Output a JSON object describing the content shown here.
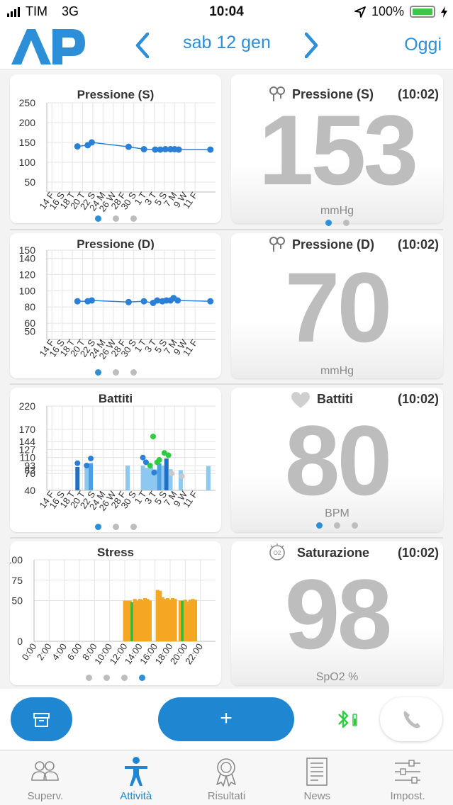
{
  "status": {
    "carrier": "TIM",
    "network": "3G",
    "time": "10:04",
    "battery": "100%"
  },
  "header": {
    "logo_text": "AP",
    "date": "sab 12 gen",
    "today_label": "Oggi"
  },
  "colors": {
    "accent": "#2c8fd8",
    "point": "#2a7fd6",
    "bar_light": "#8cc8ef",
    "bar_mid": "#4aa0e0",
    "bar_dark": "#1f6fc4",
    "green": "#2ecc40",
    "orange": "#f5a623",
    "stress_green": "#2bbd3a"
  },
  "sections": [
    {
      "chart_title": "Pressione (S)",
      "value_label": "Pressione (S)",
      "value_time": "(10:02)",
      "value": "153",
      "unit": "mmHg",
      "value_icon": "blood-pressure-icon",
      "chart_dots": 3,
      "chart_dot_active": 0,
      "value_dots": 2,
      "value_dot_active": 0
    },
    {
      "chart_title": "Pressione (D)",
      "value_label": "Pressione (D)",
      "value_time": "(10:02)",
      "value": "70",
      "unit": "mmHg",
      "value_icon": "blood-pressure-icon",
      "chart_dots": 3,
      "chart_dot_active": 0,
      "value_dots": 0,
      "value_dot_active": 0
    },
    {
      "chart_title": "Battiti",
      "value_label": "Battiti",
      "value_time": "(10:02)",
      "value": "80",
      "unit": "BPM",
      "value_icon": "heart-icon",
      "chart_dots": 3,
      "chart_dot_active": 0,
      "value_dots": 3,
      "value_dot_active": 0
    },
    {
      "chart_title": "Stress",
      "value_label": "Saturazione",
      "value_time": "(10:02)",
      "value": "98",
      "unit": "SpO2 %",
      "value_icon": "oxygen-icon",
      "chart_dots": 4,
      "chart_dot_active": 3,
      "value_dots": 0,
      "value_dot_active": 0
    }
  ],
  "chart_data": [
    {
      "type": "line",
      "title": "Pressione (S)",
      "categories": [
        "14 F",
        "16 S",
        "18 T",
        "20 T",
        "22 S",
        "24 M",
        "26 W",
        "28 F",
        "30 S",
        "1 T",
        "3 T",
        "5 S",
        "7 M",
        "9 W",
        "11 F"
      ],
      "ylim": [
        25,
        250
      ],
      "yticks": [
        50,
        100,
        150,
        200,
        250
      ],
      "ytick_labels": [
        "50",
        "100",
        "150",
        "200",
        "250"
      ],
      "series": [
        {
          "x": [
            3,
            4,
            4.4,
            8,
            9.5,
            10.6,
            11.1,
            11.6,
            12.1,
            12.5,
            12.9,
            16
          ],
          "y": [
            140,
            143,
            150,
            139,
            133,
            132,
            132,
            133,
            133,
            133,
            132,
            132
          ]
        }
      ],
      "grid": true
    },
    {
      "type": "line",
      "title": "Pressione (D)",
      "categories": [
        "14 F",
        "16 S",
        "18 T",
        "20 T",
        "22 S",
        "24 M",
        "26 W",
        "28 F",
        "30 S",
        "1 T",
        "3 T",
        "5 S",
        "7 M",
        "9 W",
        "11 F"
      ],
      "ylim": [
        40,
        150
      ],
      "yticks": [
        50,
        60,
        80,
        100,
        120,
        140,
        150
      ],
      "ytick_labels": [
        "50",
        "60",
        "80",
        "100",
        "120",
        "140",
        "150"
      ],
      "series": [
        {
          "x": [
            3,
            4,
            4.4,
            8,
            9.5,
            10.4,
            10.8,
            11.3,
            11.7,
            12.1,
            12.4,
            12.8,
            16
          ],
          "y": [
            87,
            87,
            88,
            86,
            87,
            85,
            88,
            87,
            88,
            88,
            91,
            88,
            87
          ]
        }
      ],
      "grid": true
    },
    {
      "type": "bar",
      "title": "Battiti",
      "categories": [
        "14 F",
        "16 S",
        "18 T",
        "20 T",
        "22 S",
        "24 M",
        "26 W",
        "28 F",
        "30 S",
        "1 T",
        "3 T",
        "5 S",
        "7 M",
        "9 W",
        "11 F"
      ],
      "ylim": [
        40,
        220
      ],
      "yticks": [
        40,
        76,
        83,
        93,
        110,
        127,
        144,
        170,
        220
      ],
      "ytick_labels": [
        "40",
        "76",
        "83",
        "93",
        "110",
        "127",
        "144",
        "170",
        "220"
      ],
      "bars": [
        {
          "x": 3,
          "low": 40,
          "high": 90,
          "shade": "dark"
        },
        {
          "x": 3.9,
          "low": 40,
          "high": 95,
          "shade": "light"
        },
        {
          "x": 4.3,
          "low": 40,
          "high": 98,
          "shade": "mid"
        },
        {
          "x": 7.9,
          "low": 40,
          "high": 93,
          "shade": "light"
        },
        {
          "x": 9.4,
          "low": 40,
          "high": 93,
          "shade": "light"
        },
        {
          "x": 9.8,
          "low": 40,
          "high": 88,
          "shade": "light"
        },
        {
          "x": 10.2,
          "low": 40,
          "high": 90,
          "shade": "light"
        },
        {
          "x": 10.6,
          "low": 40,
          "high": 85,
          "shade": "light"
        },
        {
          "x": 11.0,
          "low": 40,
          "high": 98,
          "shade": "mid"
        },
        {
          "x": 11.4,
          "low": 40,
          "high": 93,
          "shade": "light"
        },
        {
          "x": 11.7,
          "low": 40,
          "high": 108,
          "shade": "dark"
        },
        {
          "x": 12.1,
          "low": 40,
          "high": 85,
          "shade": "light"
        },
        {
          "x": 13.1,
          "low": 40,
          "high": 83,
          "shade": "light"
        },
        {
          "x": 15.8,
          "low": 40,
          "high": 92,
          "shade": "light"
        }
      ],
      "points": [
        {
          "x": 3,
          "y": 98,
          "color": "blue"
        },
        {
          "x": 3.9,
          "y": 93,
          "color": "blue"
        },
        {
          "x": 4.3,
          "y": 108,
          "color": "blue"
        },
        {
          "x": 9.4,
          "y": 110,
          "color": "blue"
        },
        {
          "x": 9.7,
          "y": 100,
          "color": "blue"
        },
        {
          "x": 10.1,
          "y": 93,
          "color": "green"
        },
        {
          "x": 10.4,
          "y": 155,
          "color": "green"
        },
        {
          "x": 10.5,
          "y": 78,
          "color": "blue"
        },
        {
          "x": 10.8,
          "y": 100,
          "color": "green"
        },
        {
          "x": 11.0,
          "y": 105,
          "color": "green"
        },
        {
          "x": 11.5,
          "y": 120,
          "color": "green"
        },
        {
          "x": 11.9,
          "y": 115,
          "color": "green"
        },
        {
          "x": 12.2,
          "y": 76,
          "color": "grey"
        },
        {
          "x": 13.2,
          "y": 70,
          "color": "grey"
        }
      ],
      "grid": true
    },
    {
      "type": "bar",
      "title": "Stress",
      "categories": [
        "0:00",
        "2:00",
        "4:00",
        "6:00",
        "8:00",
        "10:00",
        "12:00",
        "14:00",
        "16:00",
        "18:00",
        "20:00",
        "22:00"
      ],
      "ylim": [
        0,
        100
      ],
      "yticks": [
        0,
        50,
        75,
        100
      ],
      "ytick_labels": [
        "0",
        "50",
        "75",
        "100"
      ],
      "bars": [
        {
          "x": 12.0,
          "v": 50,
          "c": "orange"
        },
        {
          "x": 12.33,
          "v": 50,
          "c": "orange"
        },
        {
          "x": 12.67,
          "v": 50,
          "c": "orange"
        },
        {
          "x": 13.0,
          "v": 48,
          "c": "green"
        },
        {
          "x": 13.33,
          "v": 52,
          "c": "orange"
        },
        {
          "x": 13.67,
          "v": 50,
          "c": "orange"
        },
        {
          "x": 14.0,
          "v": 52,
          "c": "orange"
        },
        {
          "x": 14.33,
          "v": 51,
          "c": "orange"
        },
        {
          "x": 14.67,
          "v": 53,
          "c": "orange"
        },
        {
          "x": 15.0,
          "v": 52,
          "c": "orange"
        },
        {
          "x": 15.33,
          "v": 50,
          "c": "orange"
        },
        {
          "x": 16.33,
          "v": 63,
          "c": "orange"
        },
        {
          "x": 16.67,
          "v": 62,
          "c": "orange"
        },
        {
          "x": 17.0,
          "v": 54,
          "c": "orange"
        },
        {
          "x": 17.33,
          "v": 52,
          "c": "orange"
        },
        {
          "x": 17.67,
          "v": 53,
          "c": "orange"
        },
        {
          "x": 18.0,
          "v": 51,
          "c": "orange"
        },
        {
          "x": 18.33,
          "v": 53,
          "c": "orange"
        },
        {
          "x": 18.67,
          "v": 52,
          "c": "orange"
        },
        {
          "x": 19.33,
          "v": 50,
          "c": "orange"
        },
        {
          "x": 19.67,
          "v": 50,
          "c": "green"
        },
        {
          "x": 20.0,
          "v": 51,
          "c": "orange"
        },
        {
          "x": 20.33,
          "v": 49,
          "c": "orange"
        },
        {
          "x": 20.67,
          "v": 51,
          "c": "orange"
        },
        {
          "x": 21.0,
          "v": 52,
          "c": "orange"
        },
        {
          "x": 21.33,
          "v": 51,
          "c": "orange"
        }
      ],
      "grid": true
    }
  ],
  "actions": {
    "add_label": "+"
  },
  "tabs": [
    {
      "label": "Superv.",
      "icon": "supervisors-icon",
      "active": false
    },
    {
      "label": "Attività",
      "icon": "activity-icon",
      "active": true
    },
    {
      "label": "Risultati",
      "icon": "award-icon",
      "active": false
    },
    {
      "label": "News",
      "icon": "news-icon",
      "active": false
    },
    {
      "label": "Impost.",
      "icon": "settings-sliders-icon",
      "active": false
    }
  ]
}
